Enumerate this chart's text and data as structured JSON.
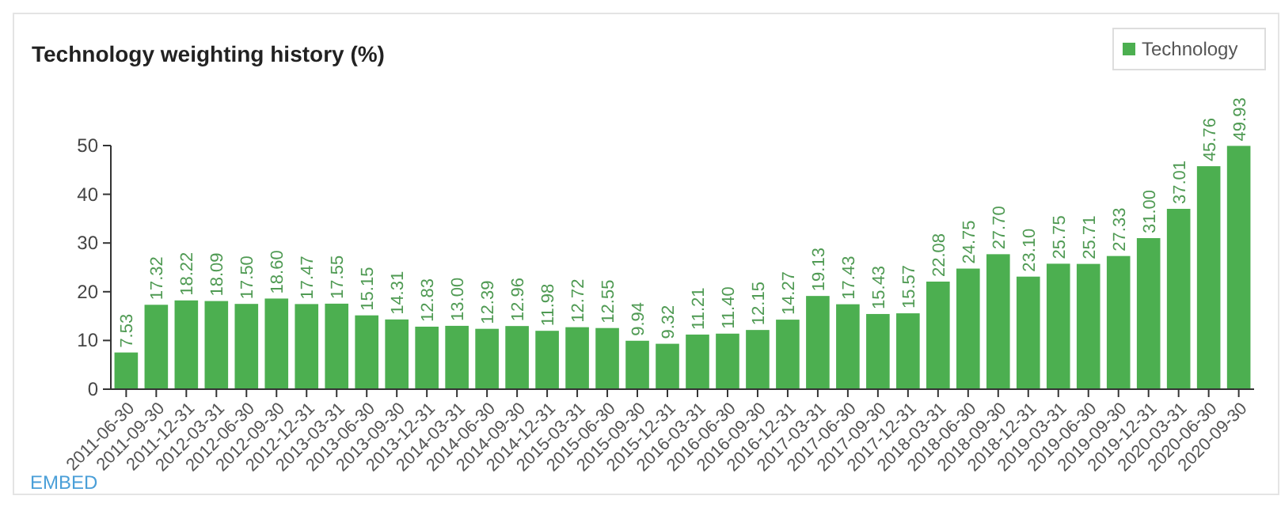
{
  "chart_data": {
    "type": "bar",
    "title": "Technology weighting history (%)",
    "categories": [
      "2011-06-30",
      "2011-09-30",
      "2011-12-31",
      "2012-03-31",
      "2012-06-30",
      "2012-09-30",
      "2012-12-31",
      "2013-03-31",
      "2013-06-30",
      "2013-09-30",
      "2013-12-31",
      "2014-03-31",
      "2014-06-30",
      "2014-09-30",
      "2014-12-31",
      "2015-03-31",
      "2015-06-30",
      "2015-09-30",
      "2015-12-31",
      "2016-03-31",
      "2016-06-30",
      "2016-09-30",
      "2016-12-31",
      "2017-03-31",
      "2017-06-30",
      "2017-09-30",
      "2017-12-31",
      "2018-03-31",
      "2018-06-30",
      "2018-09-30",
      "2018-12-31",
      "2019-03-31",
      "2019-06-30",
      "2019-09-30",
      "2019-12-31",
      "2020-03-31",
      "2020-06-30",
      "2020-09-30"
    ],
    "series": [
      {
        "name": "Technology",
        "color": "#4caf50",
        "values": [
          7.53,
          17.32,
          18.22,
          18.09,
          17.5,
          18.6,
          17.47,
          17.55,
          15.15,
          14.31,
          12.83,
          13.0,
          12.39,
          12.96,
          11.98,
          12.72,
          12.55,
          9.94,
          9.32,
          11.21,
          11.4,
          12.15,
          14.27,
          19.13,
          17.43,
          15.43,
          15.57,
          22.08,
          24.75,
          27.7,
          23.1,
          25.75,
          25.71,
          27.33,
          31.0,
          37.01,
          45.76,
          49.93
        ]
      }
    ],
    "value_labels": [
      "7.53",
      "17.32",
      "18.22",
      "18.09",
      "17.50",
      "18.60",
      "17.47",
      "17.55",
      "15.15",
      "14.31",
      "12.83",
      "13.00",
      "12.39",
      "12.96",
      "11.98",
      "12.72",
      "12.55",
      "9.94",
      "9.32",
      "11.21",
      "11.40",
      "12.15",
      "14.27",
      "19.13",
      "17.43",
      "15.43",
      "15.57",
      "22.08",
      "24.75",
      "27.70",
      "23.10",
      "25.75",
      "25.71",
      "27.33",
      "31.00",
      "37.01",
      "45.76",
      "49.93"
    ],
    "ylim": [
      0,
      50
    ],
    "yticks": [
      0,
      10,
      20,
      30,
      40,
      50
    ],
    "legend": "top right",
    "grid": false,
    "annotations": [
      "EMBED"
    ]
  }
}
